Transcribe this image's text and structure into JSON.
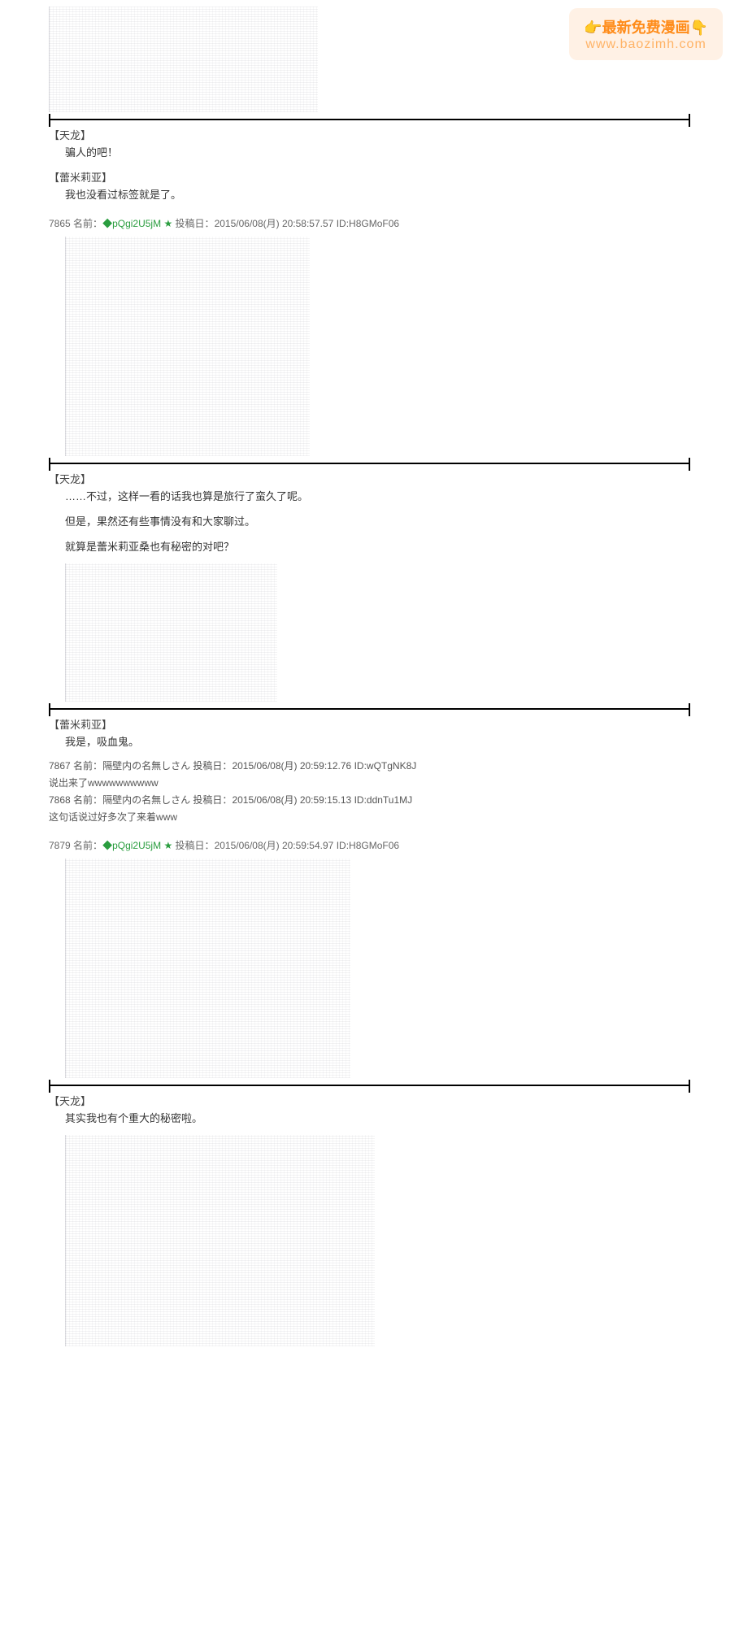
{
  "watermark": {
    "line1_emoji_left": "👉",
    "line1_text": "最新免费漫画",
    "line1_emoji_right": "👇",
    "url": "www.baozimh.com"
  },
  "blocks": [
    {
      "speaker": "【天龙】",
      "line": "骗人的吧！"
    },
    {
      "speaker": "【蕾米莉亚】",
      "line": "我也没看过标签就是了。"
    }
  ],
  "post1": {
    "num": "7865",
    "name_label": "名前：",
    "trip": "◆pQgi2U5jM",
    "star": "★",
    "date_label": "投稿日：",
    "date": "2015/06/08(月) 20:58:57.57",
    "id": "ID:H8GMoF06"
  },
  "dialogue2": {
    "speaker": "【天龙】",
    "line1": "……不过，这样一看的话我也算是旅行了蛮久了呢。",
    "line2": "但是，果然还有些事情没有和大家聊过。",
    "line3": "就算是蕾米莉亚桑也有秘密的对吧？"
  },
  "dialogue3": {
    "speaker": "【蕾米莉亚】",
    "line": "我是，吸血鬼。"
  },
  "replies": [
    {
      "num": "7867",
      "name_label": "名前：",
      "name": "隔壁内の名無しさん",
      "date_label": "投稿日：",
      "date": "2015/06/08(月) 20:59:12.76",
      "id": "ID:wQTgNK8J",
      "body": "说出来了wwwwwwwwww"
    },
    {
      "num": "7868",
      "name_label": "名前：",
      "name": "隔壁内の名無しさん",
      "date_label": "投稿日：",
      "date": "2015/06/08(月) 20:59:15.13",
      "id": "ID:ddnTu1MJ",
      "body": "这句话说过好多次了来着www"
    }
  ],
  "post2": {
    "num": "7879",
    "name_label": "名前：",
    "trip": "◆pQgi2U5jM",
    "star": "★",
    "date_label": "投稿日：",
    "date": "2015/06/08(月) 20:59:54.97",
    "id": "ID:H8GMoF06"
  },
  "dialogue4": {
    "speaker": "【天龙】",
    "line": "其实我也有个重大的秘密啦。"
  },
  "colors": {
    "trip": "#2a9d3f",
    "text": "#333333",
    "meta": "#666666",
    "watermark_orange": "#ff8c1a"
  }
}
